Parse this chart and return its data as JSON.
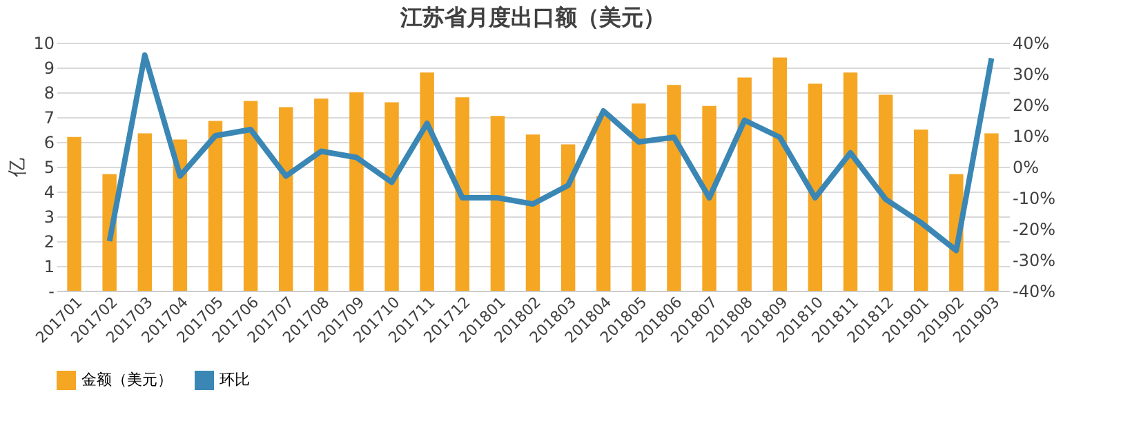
{
  "chart_data": {
    "type": "bar",
    "title": "江苏省月度出口额（美元）",
    "ylabel": "亿",
    "categories": [
      "201701",
      "201702",
      "201703",
      "201704",
      "201705",
      "201706",
      "201707",
      "201708",
      "201709",
      "201710",
      "201711",
      "201712",
      "201801",
      "201802",
      "201803",
      "201804",
      "201805",
      "201806",
      "201807",
      "201808",
      "201809",
      "201810",
      "201811",
      "201812",
      "201901",
      "201902",
      "201903"
    ],
    "series": [
      {
        "name": "金额（美元）",
        "color": "#f5a623",
        "values": [
          6.2,
          4.7,
          6.35,
          6.1,
          6.85,
          7.65,
          7.4,
          7.75,
          8.0,
          7.6,
          8.8,
          7.8,
          7.05,
          6.3,
          5.9,
          7.05,
          7.55,
          8.3,
          7.45,
          8.6,
          9.4,
          8.35,
          8.8,
          7.9,
          6.5,
          4.7,
          6.35
        ]
      },
      {
        "name": "环比",
        "type": "line",
        "axis": "y2",
        "color": "#3a87b5",
        "values": [
          null,
          -24,
          36,
          -3,
          10,
          12,
          -3,
          5,
          3,
          -5,
          14,
          -10,
          -10,
          -12,
          -6,
          18,
          8,
          9.5,
          -10,
          15,
          9.5,
          -10,
          4.5,
          -10.5,
          -18,
          -27,
          35
        ]
      }
    ],
    "ylim": [
      0,
      10
    ],
    "yticks": [
      {
        "value": 0,
        "label": "-"
      },
      1,
      2,
      3,
      4,
      5,
      6,
      7,
      8,
      9,
      10
    ],
    "y2lim": [
      -40,
      40
    ],
    "y2ticks": [
      {
        "value": -40,
        "label": "-40%"
      },
      {
        "value": -30,
        "label": "-30%"
      },
      {
        "value": -20,
        "label": "-20%"
      },
      {
        "value": -10,
        "label": "-10%"
      },
      {
        "value": 0,
        "label": "0%"
      },
      {
        "value": 10,
        "label": "10%"
      },
      {
        "value": 20,
        "label": "20%"
      },
      {
        "value": 30,
        "label": "30%"
      },
      {
        "value": 40,
        "label": "40%"
      }
    ],
    "grid": "y",
    "legend": "bottom",
    "line_style": "solid",
    "marker": "none"
  }
}
